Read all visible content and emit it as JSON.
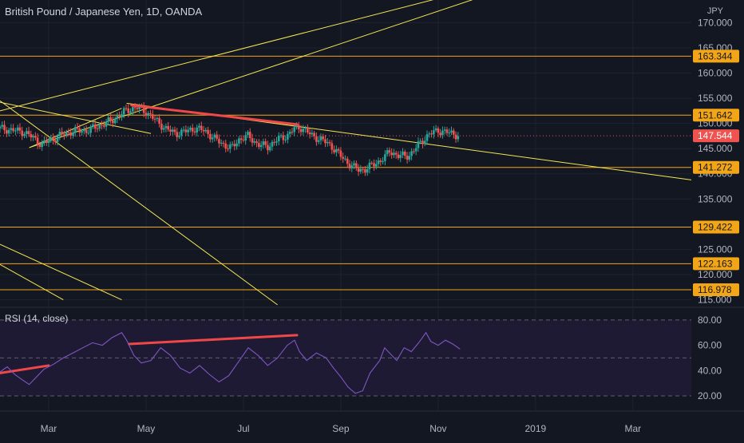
{
  "header": {
    "title": "British Pound / Japanese Yen, 1D, OANDA",
    "currency": "JPY"
  },
  "colors": {
    "background": "#131722",
    "grid": "#1f2330",
    "trendline": "#f5e653",
    "level_line": "#f2a516",
    "level_badge": "#f2a516",
    "up_candle": "#26a69a",
    "down_candle": "#ef5350",
    "price_badge": "#ef5350",
    "divergence": "#f04848",
    "rsi_line": "#7e57c2",
    "rsi_band": "#1e1a33",
    "axis_text": "#b2b5be"
  },
  "chart_data": [
    {
      "type": "candlestick",
      "symbol": "British Pound / Japanese Yen",
      "interval": "1D",
      "source": "OANDA",
      "y_axis_ticks": [
        170,
        165,
        160,
        155,
        150,
        145,
        140,
        135,
        125,
        120,
        115
      ],
      "y_tick_labels": [
        "170.000",
        "165.000",
        "160.000",
        "155.000",
        "150.000",
        "145.000",
        "140.000",
        "135.000",
        "125.000",
        "120.000",
        "115.000"
      ],
      "ylim": [
        113.5,
        174.5
      ],
      "x_axis_labels": [
        "Mar",
        "May",
        "Jul",
        "Sep",
        "Nov",
        "2019",
        "Mar"
      ],
      "x_axis_months": [
        2,
        4,
        6,
        8,
        10,
        12,
        14
      ],
      "xlim_months": [
        1.0,
        15.2
      ],
      "last_price": {
        "value": 147.544,
        "label": "147.544"
      },
      "horizontal_levels": [
        {
          "value": 163.344,
          "label": "163.344"
        },
        {
          "value": 151.642,
          "label": "151.642"
        },
        {
          "value": 141.272,
          "label": "141.272"
        },
        {
          "value": 129.422,
          "label": "129.422"
        },
        {
          "value": 122.163,
          "label": "122.163"
        },
        {
          "value": 116.978,
          "label": "116.978"
        }
      ],
      "close_path": [
        [
          1.0,
          149.0
        ],
        [
          1.3,
          148.6
        ],
        [
          1.5,
          148.3
        ],
        [
          1.7,
          147.0
        ],
        [
          1.85,
          145.8
        ],
        [
          2.0,
          146.5
        ],
        [
          2.2,
          147.5
        ],
        [
          2.5,
          148.5
        ],
        [
          2.8,
          148.6
        ],
        [
          3.0,
          149.4
        ],
        [
          3.3,
          150.6
        ],
        [
          3.6,
          152.6
        ],
        [
          3.8,
          153.2
        ],
        [
          4.0,
          152.3
        ],
        [
          4.2,
          150.6
        ],
        [
          4.4,
          149.0
        ],
        [
          4.6,
          148.0
        ],
        [
          4.8,
          148.4
        ],
        [
          5.0,
          149.0
        ],
        [
          5.2,
          148.6
        ],
        [
          5.4,
          147.0
        ],
        [
          5.6,
          145.8
        ],
        [
          5.75,
          145.0
        ],
        [
          5.9,
          146.8
        ],
        [
          6.1,
          147.5
        ],
        [
          6.3,
          145.8
        ],
        [
          6.5,
          145.4
        ],
        [
          6.7,
          146.8
        ],
        [
          6.9,
          147.6
        ],
        [
          7.05,
          149.0
        ],
        [
          7.2,
          149.2
        ],
        [
          7.4,
          147.6
        ],
        [
          7.6,
          146.8
        ],
        [
          7.8,
          145.6
        ],
        [
          8.0,
          143.5
        ],
        [
          8.2,
          141.7
        ],
        [
          8.35,
          140.8
        ],
        [
          8.5,
          140.9
        ],
        [
          8.7,
          142.0
        ],
        [
          8.9,
          143.2
        ],
        [
          9.0,
          144.5
        ],
        [
          9.2,
          143.5
        ],
        [
          9.4,
          143.6
        ],
        [
          9.6,
          145.8
        ],
        [
          9.8,
          147.8
        ],
        [
          10.0,
          148.6
        ],
        [
          10.2,
          148.2
        ],
        [
          10.35,
          147.8
        ],
        [
          10.45,
          147.544
        ]
      ],
      "trendlines": [
        {
          "from": [
            1.0,
            152.5
          ],
          "to": [
            10.8,
            176.8
          ]
        },
        {
          "from": [
            1.6,
            145.2
          ],
          "to": [
            11.4,
            176.8
          ]
        },
        {
          "from": [
            1.0,
            154.5
          ],
          "to": [
            6.7,
            114.0
          ]
        },
        {
          "from": [
            1.0,
            126.0
          ],
          "to": [
            3.5,
            115.0
          ]
        },
        {
          "from": [
            1.0,
            122.0
          ],
          "to": [
            2.3,
            115.0
          ]
        },
        {
          "from": [
            1.0,
            154.2
          ],
          "to": [
            4.1,
            148.0
          ]
        },
        {
          "from": [
            1.6,
            145.2
          ],
          "to": [
            3.5,
            153.0
          ]
        },
        {
          "from": [
            3.6,
            154.0
          ],
          "to": [
            15.2,
            138.8
          ]
        }
      ],
      "divergence_line": {
        "from": [
          3.7,
          153.6
        ],
        "to": [
          7.1,
          149.8
        ]
      }
    },
    {
      "type": "line",
      "title": "RSI (14, close)",
      "y_axis_ticks": [
        80,
        60,
        40,
        20
      ],
      "y_tick_labels": [
        "80.00",
        "60.00",
        "40.00",
        "20.00"
      ],
      "ylim": [
        8,
        90
      ],
      "band": [
        30,
        70
      ],
      "levels": [
        80,
        50,
        20
      ],
      "rsi_path": [
        [
          1.0,
          39
        ],
        [
          1.15,
          43
        ],
        [
          1.3,
          37
        ],
        [
          1.45,
          33
        ],
        [
          1.6,
          29
        ],
        [
          1.75,
          35
        ],
        [
          1.9,
          41
        ],
        [
          2.1,
          45
        ],
        [
          2.3,
          50
        ],
        [
          2.5,
          54
        ],
        [
          2.7,
          58
        ],
        [
          2.9,
          62
        ],
        [
          3.1,
          60
        ],
        [
          3.3,
          66
        ],
        [
          3.5,
          70
        ],
        [
          3.6,
          64
        ],
        [
          3.75,
          52
        ],
        [
          3.9,
          46
        ],
        [
          4.1,
          48
        ],
        [
          4.3,
          58
        ],
        [
          4.5,
          52
        ],
        [
          4.7,
          42
        ],
        [
          4.9,
          38
        ],
        [
          5.1,
          44
        ],
        [
          5.3,
          37
        ],
        [
          5.5,
          31
        ],
        [
          5.7,
          36
        ],
        [
          5.9,
          47
        ],
        [
          6.1,
          58
        ],
        [
          6.3,
          52
        ],
        [
          6.5,
          44
        ],
        [
          6.7,
          50
        ],
        [
          6.9,
          60
        ],
        [
          7.05,
          64
        ],
        [
          7.15,
          55
        ],
        [
          7.3,
          48
        ],
        [
          7.5,
          54
        ],
        [
          7.7,
          50
        ],
        [
          7.85,
          42
        ],
        [
          8.0,
          35
        ],
        [
          8.15,
          27
        ],
        [
          8.3,
          22
        ],
        [
          8.45,
          24
        ],
        [
          8.6,
          38
        ],
        [
          8.8,
          48
        ],
        [
          8.9,
          58
        ],
        [
          9.0,
          54
        ],
        [
          9.15,
          48
        ],
        [
          9.3,
          58
        ],
        [
          9.45,
          55
        ],
        [
          9.6,
          62
        ],
        [
          9.75,
          70
        ],
        [
          9.85,
          63
        ],
        [
          10.0,
          60
        ],
        [
          10.15,
          64
        ],
        [
          10.3,
          61
        ],
        [
          10.45,
          57
        ]
      ],
      "divergence_lines": [
        {
          "from": [
            1.0,
            38
          ],
          "to": [
            2.0,
            44
          ]
        },
        {
          "from": [
            3.65,
            61
          ],
          "to": [
            7.1,
            68
          ]
        }
      ]
    }
  ]
}
